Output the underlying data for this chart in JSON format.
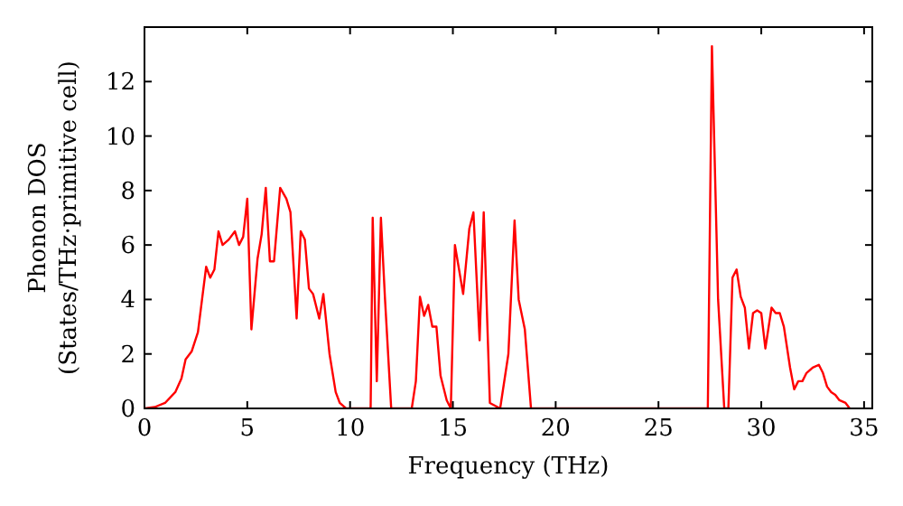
{
  "chart_data": {
    "type": "line",
    "xlabel": "Frequency (THz)",
    "ylabel": "Phonon DOS\n(States/THz·primitive cell)",
    "xlim": [
      0,
      35.4
    ],
    "ylim": [
      0,
      14
    ],
    "xticks": [
      0,
      5,
      10,
      15,
      20,
      25,
      30,
      35
    ],
    "yticks": [
      0,
      2,
      4,
      6,
      8,
      10,
      12
    ],
    "grid": false,
    "series": [
      {
        "color": "#ff0000",
        "x": [
          0,
          0.5,
          1,
          1.5,
          1.8,
          2.0,
          2.3,
          2.6,
          2.8,
          3.0,
          3.2,
          3.4,
          3.6,
          3.8,
          4.1,
          4.4,
          4.6,
          4.8,
          5.0,
          5.2,
          5.5,
          5.7,
          5.9,
          6.1,
          6.3,
          6.6,
          6.9,
          7.1,
          7.4,
          7.6,
          7.8,
          8.0,
          8.2,
          8.5,
          8.7,
          9.0,
          9.3,
          9.5,
          9.8,
          10.5,
          11.0,
          11.1,
          11.3,
          11.5,
          11.7,
          12.0,
          13.0,
          13.2,
          13.4,
          13.6,
          13.8,
          14.0,
          14.2,
          14.4,
          14.7,
          14.9,
          15.1,
          15.5,
          15.8,
          16.0,
          16.3,
          16.5,
          16.8,
          17.3,
          17.7,
          18.0,
          18.2,
          18.5,
          18.8,
          27.4,
          27.6,
          27.9,
          28.2,
          28.4,
          28.6,
          28.8,
          29.0,
          29.2,
          29.4,
          29.6,
          29.8,
          30.0,
          30.2,
          30.5,
          30.7,
          30.9,
          31.1,
          31.4,
          31.6,
          31.8,
          32.0,
          32.2,
          32.5,
          32.8,
          33.0,
          33.2,
          33.4,
          33.6,
          33.8,
          34.1,
          34.3
        ],
        "values": [
          0,
          0.05,
          0.2,
          0.6,
          1.1,
          1.8,
          2.1,
          2.8,
          4.0,
          5.2,
          4.8,
          5.1,
          6.5,
          6.0,
          6.2,
          6.5,
          6.0,
          6.3,
          7.7,
          2.9,
          5.5,
          6.4,
          8.1,
          5.4,
          5.4,
          8.1,
          7.7,
          7.2,
          3.3,
          6.5,
          6.2,
          4.4,
          4.2,
          3.3,
          4.2,
          2.0,
          0.6,
          0.2,
          0,
          0,
          0,
          7.0,
          1.0,
          7.0,
          4.0,
          0,
          0,
          1.0,
          4.1,
          3.4,
          3.8,
          3.0,
          3.0,
          1.2,
          0.3,
          0,
          6.0,
          4.2,
          6.6,
          7.2,
          2.5,
          7.2,
          0.2,
          0,
          2.0,
          6.9,
          4.0,
          2.9,
          0,
          0,
          13.3,
          4.0,
          0,
          0,
          4.8,
          5.1,
          4.1,
          3.7,
          2.2,
          3.5,
          3.6,
          3.5,
          2.2,
          3.7,
          3.5,
          3.5,
          3.0,
          1.5,
          0.7,
          1.0,
          1.0,
          1.3,
          1.5,
          1.6,
          1.3,
          0.8,
          0.6,
          0.5,
          0.3,
          0.2,
          0
        ]
      }
    ]
  }
}
